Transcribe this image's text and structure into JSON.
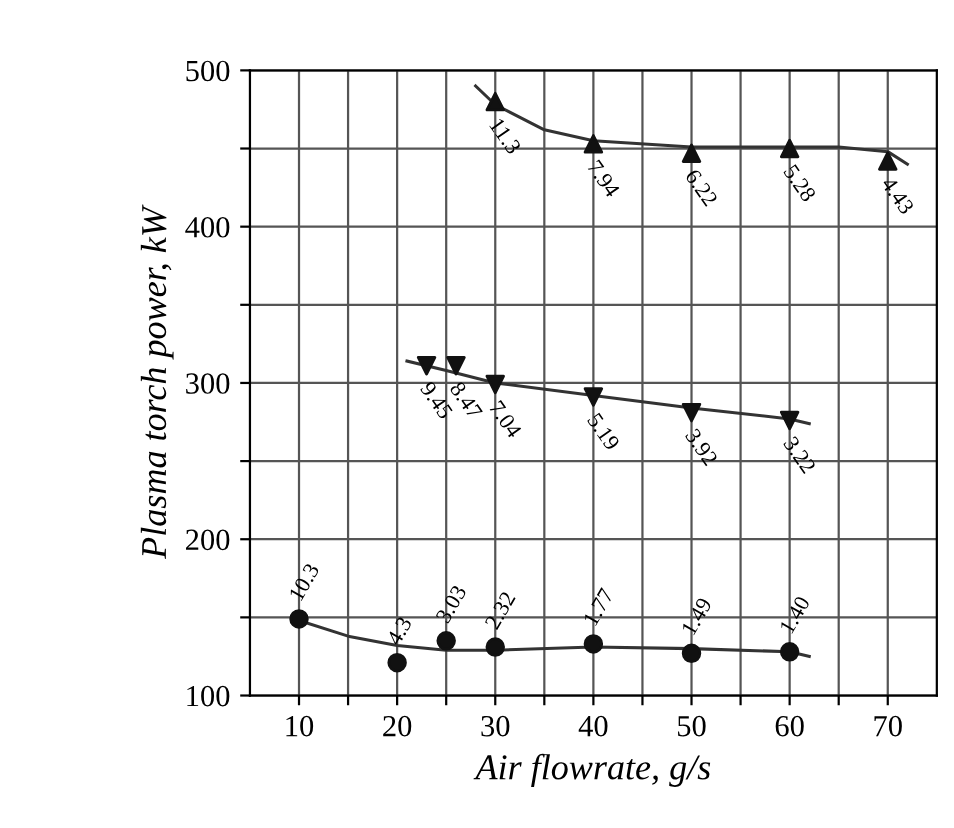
{
  "chart_data": {
    "type": "scatter",
    "xlabel": "Air flowrate, g/s",
    "ylabel": "Plasma torch power, kW",
    "xlim": [
      5,
      75
    ],
    "ylim": [
      100,
      500
    ],
    "xticks": [
      10,
      {
        "value": 15,
        "label": null
      },
      20,
      {
        "value": 25,
        "label": null
      },
      30,
      {
        "value": 35,
        "label": null
      },
      40,
      {
        "value": 45,
        "label": null
      },
      50,
      {
        "value": 55,
        "label": null
      },
      60,
      {
        "value": 65,
        "label": null
      },
      70
    ],
    "yticks": [
      100,
      {
        "value": 150,
        "label": null
      },
      200,
      {
        "value": 250,
        "label": null
      },
      300,
      {
        "value": 350,
        "label": null
      },
      400,
      {
        "value": 450,
        "label": null
      },
      500
    ],
    "grid": true,
    "series": [
      {
        "type": "line",
        "color": "#333333",
        "marker": "none",
        "x": [
          28,
          30,
          35,
          40,
          50,
          60,
          65,
          70,
          72
        ],
        "values": [
          490,
          478,
          462,
          455,
          451,
          451,
          451,
          448,
          440
        ]
      },
      {
        "type": "line",
        "color": "#333333",
        "marker": "none",
        "x": [
          21,
          25,
          30,
          40,
          50,
          60,
          62
        ],
        "values": [
          314,
          308,
          300,
          292,
          284,
          277,
          274
        ]
      },
      {
        "type": "line",
        "color": "#333333",
        "marker": "none",
        "x": [
          10,
          15,
          20,
          25,
          30,
          40,
          50,
          60,
          62
        ],
        "values": [
          148,
          138,
          132,
          129,
          129,
          131,
          130,
          128,
          125
        ]
      },
      {
        "color": "#111111",
        "marker": "triangle",
        "x": [
          30,
          40,
          50,
          60,
          70
        ],
        "values": [
          480,
          453,
          447,
          450,
          442
        ]
      },
      {
        "color": "#111111",
        "marker": "triangle_down",
        "x": [
          23,
          26,
          30,
          40,
          50,
          60
        ],
        "values": [
          311,
          311,
          299,
          291,
          281,
          276
        ]
      },
      {
        "color": "#111111",
        "marker": "circle",
        "x": [
          10,
          20,
          25,
          30,
          40,
          50,
          60
        ],
        "values": [
          149,
          121,
          135,
          131,
          133,
          127,
          128
        ]
      }
    ],
    "annotations": [
      {
        "text": "11.3",
        "x": 30,
        "y": 480
      },
      {
        "text": "7.94",
        "x": 40,
        "y": 453
      },
      {
        "text": "6.22",
        "x": 50,
        "y": 447
      },
      {
        "text": "5.28",
        "x": 60,
        "y": 450
      },
      {
        "text": "4.43",
        "x": 70,
        "y": 442
      },
      {
        "text": "9.45",
        "x": 23,
        "y": 311
      },
      {
        "text": "8.47",
        "x": 26,
        "y": 311
      },
      {
        "text": "7.04",
        "x": 30,
        "y": 299
      },
      {
        "text": "5.19",
        "x": 40,
        "y": 291
      },
      {
        "text": "3.92",
        "x": 50,
        "y": 281
      },
      {
        "text": "3.22",
        "x": 60,
        "y": 276
      },
      {
        "text": "10.3",
        "x": 10,
        "y": 149
      },
      {
        "text": "4.3",
        "x": 20,
        "y": 121
      },
      {
        "text": "3.03",
        "x": 25,
        "y": 135
      },
      {
        "text": "2.32",
        "x": 30,
        "y": 131
      },
      {
        "text": "1.77",
        "x": 40,
        "y": 133
      },
      {
        "text": "1.49",
        "x": 50,
        "y": 127
      },
      {
        "text": "1.40",
        "x": 60,
        "y": 128
      }
    ]
  }
}
